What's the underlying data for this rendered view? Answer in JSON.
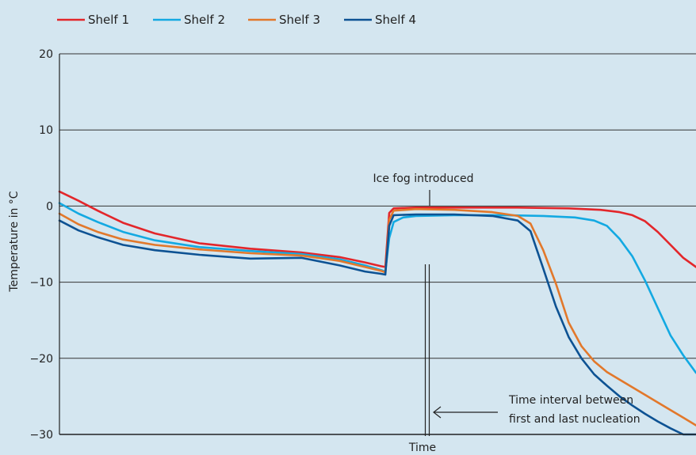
{
  "chart_data": {
    "type": "line",
    "xlabel": "Time",
    "ylabel": "Temperature in °C",
    "ylim": [
      -30,
      20
    ],
    "yticks": [
      20,
      10,
      0,
      -10,
      -20,
      -30
    ],
    "ytick_labels": [
      "20",
      "10",
      "0",
      "−10",
      "−20",
      "−30"
    ],
    "xlim": [
      0,
      100
    ],
    "grid": "horizontal",
    "legend_position": "top-left",
    "series": [
      {
        "name": "Shelf 1",
        "color": "#e3262a",
        "x": [
          0,
          3,
          6,
          10,
          15,
          22,
          30,
          38,
          44,
          48,
          50.5,
          51.2,
          51.8,
          52.5,
          56,
          65,
          72,
          80,
          85,
          88,
          90,
          92,
          94,
          96,
          98,
          100
        ],
        "y": [
          1.9,
          0.7,
          -0.6,
          -2.2,
          -3.6,
          -4.9,
          -5.6,
          -6.1,
          -6.7,
          -7.4,
          -7.9,
          -8.0,
          -0.9,
          -0.3,
          -0.2,
          -0.2,
          -0.2,
          -0.3,
          -0.5,
          -0.8,
          -1.2,
          -2.0,
          -3.4,
          -5.1,
          -6.8,
          -8.0
        ]
      },
      {
        "name": "Shelf 2",
        "color": "#13a9e2",
        "x": [
          0,
          3,
          6,
          10,
          15,
          22,
          30,
          38,
          44,
          48,
          50.5,
          51.2,
          51.8,
          52.5,
          54,
          56,
          62,
          70,
          76,
          81,
          84,
          86,
          88,
          90,
          92,
          94,
          96,
          98,
          100
        ],
        "y": [
          0.4,
          -1.0,
          -2.1,
          -3.4,
          -4.5,
          -5.4,
          -5.9,
          -6.3,
          -7.0,
          -7.8,
          -8.4,
          -8.6,
          -4.2,
          -2.1,
          -1.5,
          -1.3,
          -1.2,
          -1.2,
          -1.3,
          -1.5,
          -1.9,
          -2.6,
          -4.3,
          -6.6,
          -9.8,
          -13.4,
          -17.0,
          -19.6,
          -21.9
        ]
      },
      {
        "name": "Shelf 3",
        "color": "#e2782b",
        "x": [
          0,
          3,
          6,
          10,
          15,
          22,
          30,
          38,
          44,
          48,
          50.5,
          51.2,
          51.8,
          52.5,
          56,
          62,
          68,
          72,
          74,
          76,
          78,
          80,
          82,
          84,
          86,
          88,
          90,
          92,
          94,
          96,
          98,
          100
        ],
        "y": [
          -1.0,
          -2.4,
          -3.4,
          -4.4,
          -5.1,
          -5.7,
          -6.2,
          -6.5,
          -7.2,
          -8.0,
          -8.5,
          -8.7,
          -1.8,
          -0.6,
          -0.4,
          -0.5,
          -0.8,
          -1.3,
          -2.3,
          -5.8,
          -10.2,
          -15.3,
          -18.4,
          -20.4,
          -21.8,
          -22.8,
          -23.8,
          -24.8,
          -25.8,
          -26.8,
          -27.8,
          -28.8
        ]
      },
      {
        "name": "Shelf 4",
        "color": "#0d5293",
        "x": [
          0,
          3,
          6,
          10,
          15,
          22,
          30,
          38,
          44,
          48,
          50.5,
          51.2,
          51.8,
          52.5,
          56,
          62,
          68,
          72,
          74,
          76,
          78,
          80,
          82,
          84,
          86,
          88,
          90,
          92,
          94,
          96,
          98,
          100
        ],
        "y": [
          -1.9,
          -3.2,
          -4.1,
          -5.1,
          -5.8,
          -6.4,
          -6.9,
          -6.8,
          -7.8,
          -8.6,
          -8.9,
          -9.0,
          -2.6,
          -1.2,
          -1.1,
          -1.1,
          -1.3,
          -1.9,
          -3.3,
          -8.2,
          -13.2,
          -17.2,
          -20.0,
          -22.1,
          -23.6,
          -25.0,
          -26.2,
          -27.3,
          -28.3,
          -29.2,
          -30.0,
          -30.0
        ]
      }
    ],
    "annotations": {
      "ice_fog": "Ice fog introduced",
      "interval_line1": "Time interval between",
      "interval_line2": "first and last nucleation"
    }
  }
}
